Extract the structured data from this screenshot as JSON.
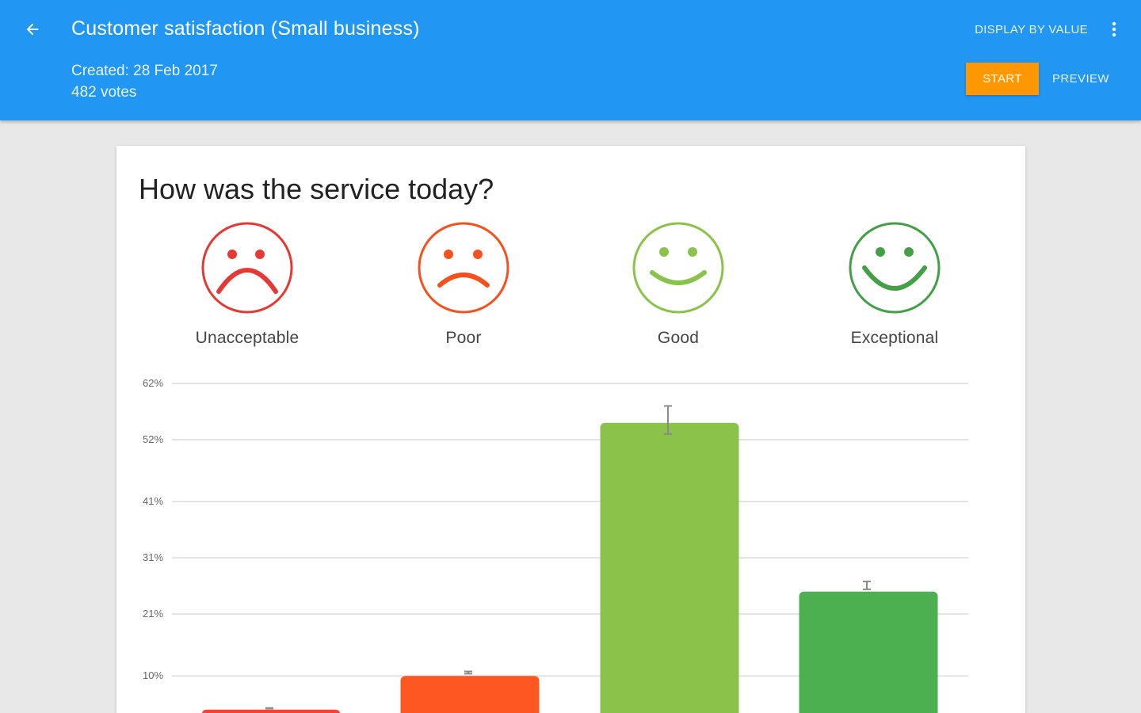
{
  "header": {
    "title": "Customer satisfaction (Small business)",
    "created": "Created: 28 Feb 2017",
    "votes": "482 votes",
    "display_by": "DISPLAY BY VALUE",
    "start_label": "START",
    "preview_label": "PREVIEW"
  },
  "card": {
    "question": "How was the service today?",
    "options": [
      {
        "label": "Unacceptable",
        "mood": "very-sad",
        "color": "#e53935"
      },
      {
        "label": "Poor",
        "mood": "sad",
        "color": "#f4511e"
      },
      {
        "label": "Good",
        "mood": "happy",
        "color": "#8bc34a"
      },
      {
        "label": "Exceptional",
        "mood": "very-happy",
        "color": "#43a047"
      }
    ]
  },
  "colors": {
    "appbar": "#2196f3",
    "start_button": "#ff9800",
    "bar_unacceptable": "#f44336",
    "bar_poor": "#ff5722",
    "bar_good": "#8bc34a",
    "bar_exceptional": "#4caf50"
  },
  "chart_data": {
    "type": "bar",
    "categories": [
      "Unacceptable",
      "Poor",
      "Good",
      "Exceptional"
    ],
    "values": [
      4,
      10,
      55,
      25
    ],
    "error": [
      [
        4.2,
        4.3
      ],
      [
        10.4,
        10.8
      ],
      [
        53,
        58
      ],
      [
        25.4,
        26.8
      ]
    ],
    "yticks": [
      "62%",
      "52%",
      "41%",
      "31%",
      "21%",
      "10%"
    ],
    "ytick_values": [
      62,
      52,
      41,
      31,
      21,
      10
    ],
    "ylim": [
      0,
      62
    ],
    "grid": true
  }
}
